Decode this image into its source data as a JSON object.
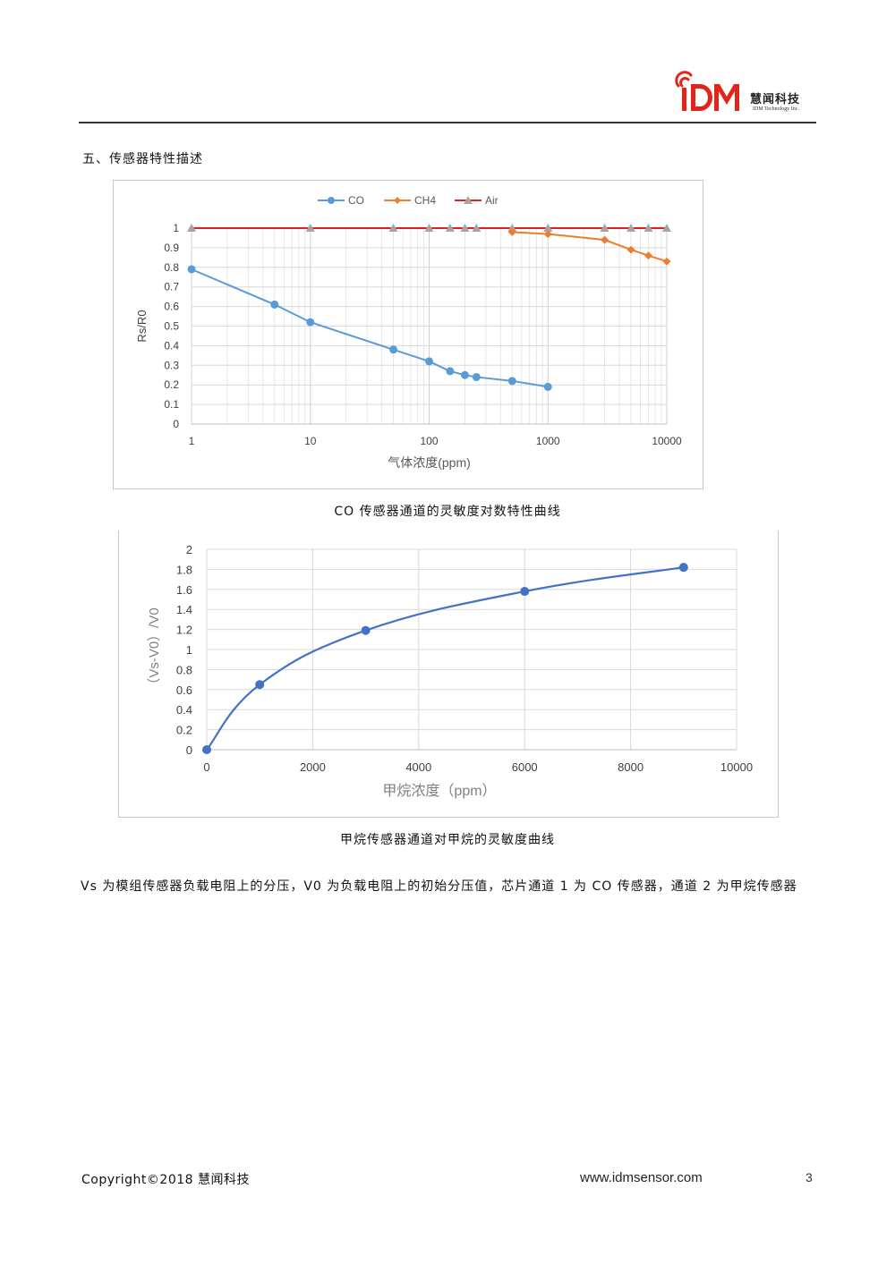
{
  "header": {
    "logo_mark": "iDM",
    "company_cn": "慧闻科技",
    "company_en": "IDM Technology Inc.",
    "brand_color": "#e1251b"
  },
  "section_title": "五、传感器特性描述",
  "chart_data": [
    {
      "type": "line",
      "xscale": "log",
      "title": "",
      "xlabel": "气体浓度(ppm)",
      "ylabel": "Rs/R0",
      "xlim": [
        1,
        10000
      ],
      "ylim": [
        0,
        1
      ],
      "xticks": [
        "1",
        "10",
        "100",
        "1000",
        "10000"
      ],
      "yticks": [
        "0",
        "0.1",
        "0.2",
        "0.3",
        "0.4",
        "0.5",
        "0.6",
        "0.7",
        "0.8",
        "0.9",
        "1"
      ],
      "legend": "top",
      "grid": true,
      "series": [
        {
          "name": "CO",
          "color": "#5b9bd5",
          "marker": "circle",
          "x": [
            1,
            5,
            10,
            50,
            100,
            150,
            200,
            250,
            500,
            1000
          ],
          "y": [
            0.79,
            0.61,
            0.52,
            0.38,
            0.32,
            0.27,
            0.25,
            0.24,
            0.22,
            0.19
          ]
        },
        {
          "name": "CH4",
          "color": "#ed7d31",
          "marker": "diamond",
          "x": [
            500,
            1000,
            3000,
            5000,
            7000,
            10000
          ],
          "y": [
            0.98,
            0.97,
            0.94,
            0.89,
            0.86,
            0.83
          ]
        },
        {
          "name": "Air",
          "color": "#e02020",
          "marker_color": "#a5a5a5",
          "marker": "triangle",
          "x": [
            1,
            10,
            50,
            100,
            150,
            200,
            250,
            500,
            1000,
            3000,
            5000,
            7000,
            10000
          ],
          "y": [
            1,
            1,
            1,
            1,
            1,
            1,
            1,
            1,
            1,
            1,
            1,
            1,
            1
          ]
        }
      ]
    },
    {
      "type": "line",
      "smooth": true,
      "title": "",
      "xlabel": "甲烷浓度（ppm）",
      "ylabel": "（Vs-V0）/V0",
      "xlim": [
        0,
        10000
      ],
      "ylim": [
        0,
        2
      ],
      "xticks": [
        "0",
        "2000",
        "4000",
        "6000",
        "8000",
        "10000"
      ],
      "yticks": [
        "0",
        "0.2",
        "0.4",
        "0.6",
        "0.8",
        "1",
        "1.2",
        "1.4",
        "1.6",
        "1.8",
        "2"
      ],
      "grid": true,
      "series": [
        {
          "name": "CH4",
          "color": "#4472c4",
          "x": [
            0,
            1000,
            3000,
            6000,
            9000
          ],
          "y": [
            0,
            0.65,
            1.19,
            1.58,
            1.82
          ]
        }
      ]
    }
  ],
  "captions": {
    "chart1": "CO 传感器通道的灵敏度对数特性曲线",
    "chart2": "甲烷传感器通道对甲烷的灵敏度曲线"
  },
  "note": "Vs 为模组传感器负载电阻上的分压，V0 为负载电阻上的初始分压值，芯片通道 1 为 CO 传感器，通道 2 为甲烷传感器",
  "footer": {
    "copyright": "Copyright©2018 慧闻科技",
    "website": "www.idmsensor.com",
    "page": "3"
  }
}
